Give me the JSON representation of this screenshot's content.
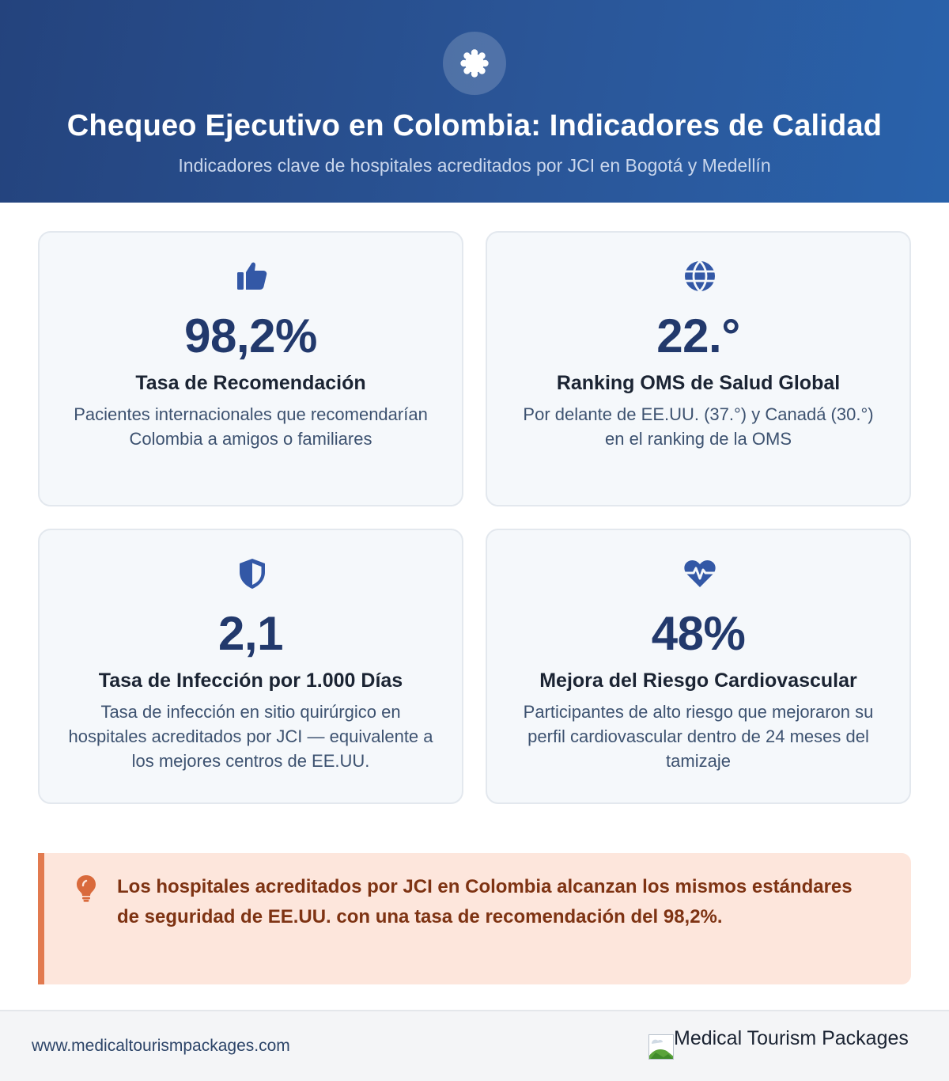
{
  "header": {
    "title": "Chequeo Ejecutivo en Colombia: Indicadores de Calidad",
    "subtitle": "Indicadores clave de hospitales acreditados por JCI en Bogotá y Medellín",
    "badge_icon": "award-seal-icon"
  },
  "cards": [
    {
      "icon": "thumbs-up-icon",
      "value": "98,2%",
      "label": "Tasa de Recomendación",
      "description": "Pacientes internacionales que recomendarían Colombia a amigos o familiares"
    },
    {
      "icon": "globe-icon",
      "value": "22.°",
      "label": "Ranking OMS de Salud Global",
      "description": "Por delante de EE.UU. (37.°) y Canadá (30.°) en el ranking de la OMS"
    },
    {
      "icon": "shield-icon",
      "value": "2,1",
      "label": "Tasa de Infección por 1.000 Días",
      "description": "Tasa de infección en sitio quirúrgico en hospitales acreditados por JCI — equivalente a los mejores centros de EE.UU."
    },
    {
      "icon": "heart-pulse-icon",
      "value": "48%",
      "label": "Mejora del Riesgo Cardiovascular",
      "description": "Participantes de alto riesgo que mejoraron su perfil cardiovascular dentro de 24 meses del tamizaje"
    }
  ],
  "callout": {
    "icon": "lightbulb-icon",
    "text": "Los hospitales acreditados por JCI en Colombia alcanzan los mismos estándares de seguridad de EE.UU. con una tasa de recomendación del 98,2%."
  },
  "footer": {
    "url": "www.medicaltourismpackages.com",
    "brand": "Medical Tourism Packages"
  },
  "colors": {
    "header_start": "#24437d",
    "header_end": "#2962ab",
    "value": "#22396c",
    "icon": "#3358a6",
    "callout_bg": "#fde6dc",
    "callout_border": "#e27a4f",
    "callout_text": "#7e3313"
  }
}
